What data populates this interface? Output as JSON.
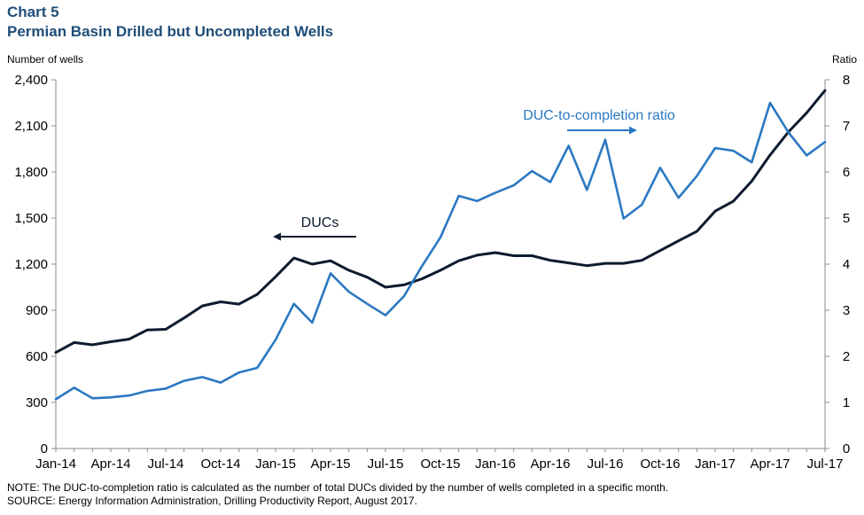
{
  "header": {
    "chart_number": "Chart 5",
    "title": "Permian Basin Drilled but Uncompleted Wells"
  },
  "footer": {
    "note": "NOTE: The DUC-to-completion ratio is calculated as the number of total DUCs divided by the number of wells completed in a specific month.",
    "source": "SOURCE: Energy Information Administration, Drilling Productivity Report, August 2017."
  },
  "colors": {
    "ducs": "#0d1b2e",
    "ratio": "#2b78c2",
    "axis": "#8c8c8c"
  },
  "chart_data": {
    "type": "line",
    "title": "Permian Basin Drilled but Uncompleted Wells",
    "ylabel_left": "Number of wells",
    "ylabel_right": "Ratio",
    "ylim_left": [
      0,
      2400
    ],
    "ylim_right": [
      0,
      8
    ],
    "yticks_left": [
      "0",
      "300",
      "600",
      "900",
      "1,200",
      "1,500",
      "1,800",
      "2,100",
      "2,400"
    ],
    "yticks_right": [
      "0",
      "1",
      "2",
      "3",
      "4",
      "5",
      "6",
      "7",
      "8"
    ],
    "x": [
      "Jan-14",
      "Feb-14",
      "Mar-14",
      "Apr-14",
      "May-14",
      "Jun-14",
      "Jul-14",
      "Aug-14",
      "Sep-14",
      "Oct-14",
      "Nov-14",
      "Dec-14",
      "Jan-15",
      "Feb-15",
      "Mar-15",
      "Apr-15",
      "May-15",
      "Jun-15",
      "Jul-15",
      "Aug-15",
      "Sep-15",
      "Oct-15",
      "Nov-15",
      "Dec-15",
      "Jan-16",
      "Feb-16",
      "Mar-16",
      "Apr-16",
      "May-16",
      "Jun-16",
      "Jul-16",
      "Aug-16",
      "Sep-16",
      "Oct-16",
      "Nov-16",
      "Dec-16",
      "Jan-17",
      "Feb-17",
      "Mar-17",
      "Apr-17",
      "May-17",
      "Jun-17",
      "Jul-17"
    ],
    "xtick_labels": [
      "Jan-14",
      "Apr-14",
      "Jul-14",
      "Oct-14",
      "Jan-15",
      "Apr-15",
      "Jul-15",
      "Oct-15",
      "Jan-16",
      "Apr-16",
      "Jul-16",
      "Oct-16",
      "Jan-17",
      "Apr-17",
      "Jul-17"
    ],
    "series": [
      {
        "name": "DUCs",
        "axis": "left",
        "values": [
          625,
          690,
          675,
          695,
          712,
          772,
          776,
          850,
          928,
          955,
          940,
          1003,
          1118,
          1240,
          1200,
          1222,
          1160,
          1115,
          1050,
          1065,
          1105,
          1160,
          1222,
          1258,
          1275,
          1255,
          1255,
          1225,
          1208,
          1190,
          1205,
          1205,
          1225,
          1288,
          1352,
          1413,
          1545,
          1610,
          1740,
          1910,
          2060,
          2185,
          2330
        ]
      },
      {
        "name": "DUC-to-completion ratio",
        "axis": "right",
        "values": [
          1.07,
          1.32,
          1.09,
          1.11,
          1.15,
          1.25,
          1.3,
          1.47,
          1.55,
          1.43,
          1.65,
          1.75,
          2.36,
          3.14,
          2.73,
          3.8,
          3.4,
          3.14,
          2.89,
          3.3,
          3.96,
          4.58,
          5.48,
          5.37,
          5.55,
          5.71,
          6.02,
          5.78,
          6.57,
          5.61,
          6.7,
          4.99,
          5.29,
          6.09,
          5.44,
          5.91,
          6.52,
          6.46,
          6.21,
          7.5,
          6.86,
          6.36,
          6.65
        ]
      }
    ],
    "annotations": [
      {
        "text": "DUCs",
        "arrow": "left"
      },
      {
        "text": "DUC-to-completion ratio",
        "arrow": "right"
      }
    ],
    "grid": false
  }
}
